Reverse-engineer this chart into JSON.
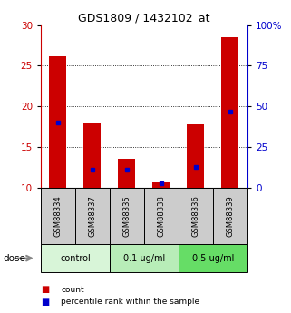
{
  "title": "GDS1809 / 1432102_at",
  "samples": [
    "GSM88334",
    "GSM88337",
    "GSM88335",
    "GSM88338",
    "GSM88336",
    "GSM88339"
  ],
  "count_values": [
    26.2,
    17.9,
    13.6,
    10.7,
    17.8,
    28.5
  ],
  "percentile_values": [
    40,
    11,
    11,
    3,
    13,
    47
  ],
  "y_min": 10,
  "y_max": 30,
  "y_ticks_left": [
    10,
    15,
    20,
    25,
    30
  ],
  "y_ticks_right": [
    0,
    25,
    50,
    75,
    100
  ],
  "left_axis_color": "#cc0000",
  "right_axis_color": "#0000cc",
  "bar_color": "#cc0000",
  "dot_color": "#0000cc",
  "legend_count": "count",
  "legend_percentile": "percentile rank within the sample",
  "sample_bg_color": "#cccccc",
  "group_spans": [
    [
      0,
      1,
      "control",
      "#d8f5d8"
    ],
    [
      2,
      3,
      "0.1 ug/ml",
      "#b8edb8"
    ],
    [
      4,
      5,
      "0.5 ug/ml",
      "#66dd66"
    ]
  ],
  "bar_width": 0.5,
  "grid_lines": [
    15,
    20,
    25
  ]
}
